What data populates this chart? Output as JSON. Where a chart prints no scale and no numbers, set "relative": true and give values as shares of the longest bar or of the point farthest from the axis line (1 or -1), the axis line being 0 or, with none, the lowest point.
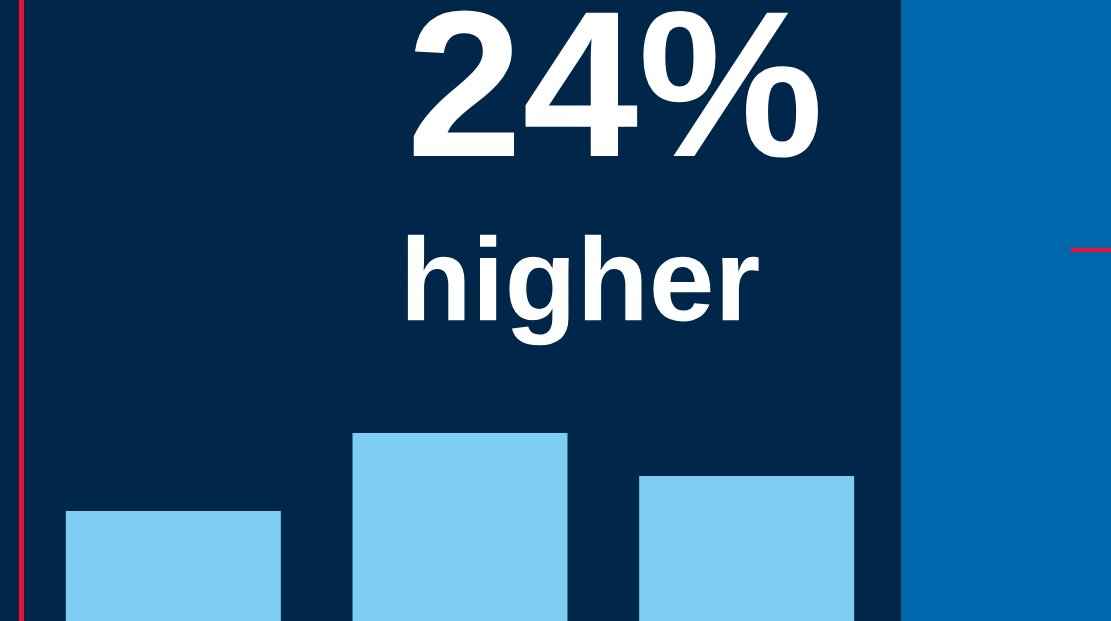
{
  "chart_data": {
    "type": "bar",
    "title": "24%",
    "subtitle": "higher",
    "categories": [
      null,
      null,
      null
    ],
    "values": [
      0.585,
      1,
      0.771
    ],
    "color": "#7ecef4",
    "relative": true
  }
}
